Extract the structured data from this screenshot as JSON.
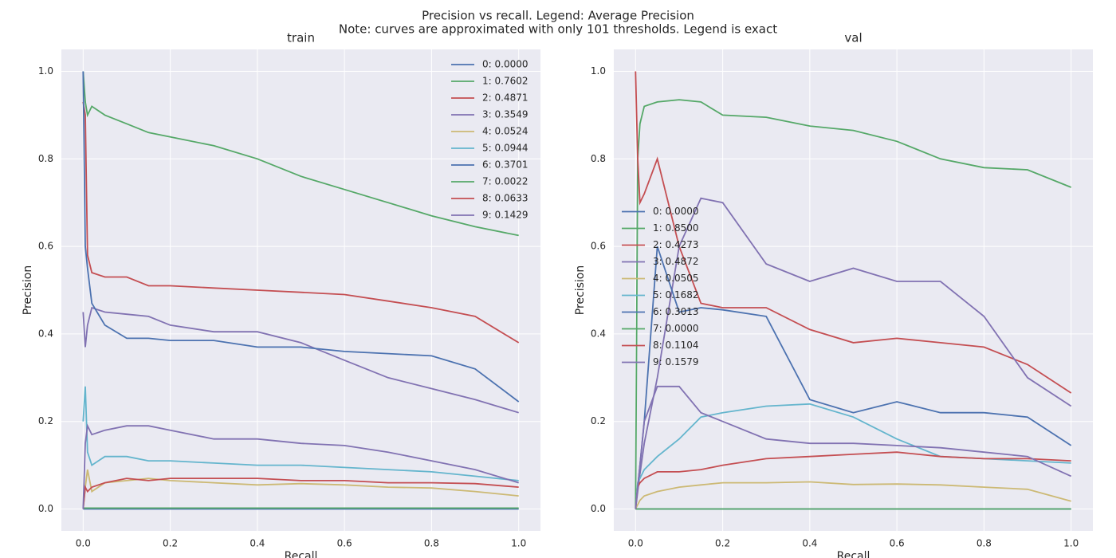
{
  "title": "Precision vs recall. Legend: Average Precision",
  "note": "Note: curves are approximated with only 101 thresholds. Legend is exact",
  "chart_data": [
    {
      "type": "line",
      "title": "train",
      "x_label": "Recall",
      "y_label": "Precision",
      "xlim": [
        -0.05,
        1.05
      ],
      "ylim": [
        -0.05,
        1.05
      ],
      "xticks": [
        {
          "value": 0,
          "label": "0.0"
        },
        0.2,
        0.4,
        0.6,
        0.8,
        {
          "value": 1,
          "label": "1.0"
        }
      ],
      "yticks": [
        {
          "value": 0,
          "label": "0.0"
        },
        0.2,
        0.4,
        0.6,
        0.8,
        {
          "value": 1,
          "label": "1.0"
        }
      ],
      "grid": true,
      "legend": "upper right",
      "x": [
        0,
        0.005,
        0.01,
        0.02,
        0.05,
        0.1,
        0.15,
        0.2,
        0.3,
        0.4,
        0.5,
        0.6,
        0.7,
        0.8,
        0.9,
        1.0
      ],
      "series": [
        {
          "name": "0: 0.0000",
          "color": "#4C72B0",
          "values": [
            0,
            0,
            0,
            0,
            0,
            0,
            0,
            0,
            0,
            0,
            0,
            0,
            0,
            0,
            0,
            0
          ]
        },
        {
          "name": "1: 0.7602",
          "color": "#55A868",
          "values": [
            1.0,
            0.93,
            0.9,
            0.92,
            0.9,
            0.88,
            0.86,
            0.85,
            0.83,
            0.8,
            0.76,
            0.73,
            0.7,
            0.67,
            0.645,
            0.625
          ]
        },
        {
          "name": "2: 0.4871",
          "color": "#C44E52",
          "values": [
            0.93,
            0.9,
            0.58,
            0.54,
            0.53,
            0.53,
            0.51,
            0.51,
            0.505,
            0.5,
            0.495,
            0.49,
            0.475,
            0.46,
            0.44,
            0.38
          ]
        },
        {
          "name": "3: 0.3549",
          "color": "#8172B2",
          "values": [
            0.45,
            0.37,
            0.42,
            0.46,
            0.45,
            0.445,
            0.44,
            0.42,
            0.405,
            0.405,
            0.38,
            0.34,
            0.3,
            0.275,
            0.25,
            0.22
          ]
        },
        {
          "name": "4: 0.0524",
          "color": "#CCB974",
          "values": [
            0,
            0.05,
            0.09,
            0.04,
            0.06,
            0.065,
            0.07,
            0.065,
            0.06,
            0.055,
            0.058,
            0.055,
            0.05,
            0.048,
            0.04,
            0.03
          ]
        },
        {
          "name": "5: 0.0944",
          "color": "#64B5CD",
          "values": [
            0.2,
            0.28,
            0.13,
            0.1,
            0.12,
            0.12,
            0.11,
            0.11,
            0.105,
            0.1,
            0.1,
            0.095,
            0.09,
            0.085,
            0.075,
            0.065
          ]
        },
        {
          "name": "6: 0.3701",
          "color": "#4C72B0",
          "values": [
            1.0,
            0.6,
            0.55,
            0.47,
            0.42,
            0.39,
            0.39,
            0.385,
            0.385,
            0.37,
            0.37,
            0.36,
            0.355,
            0.35,
            0.32,
            0.245
          ]
        },
        {
          "name": "7: 0.0022",
          "color": "#55A868",
          "values": [
            0.002,
            0.002,
            0.002,
            0.002,
            0.002,
            0.002,
            0.002,
            0.002,
            0.002,
            0.002,
            0.002,
            0.002,
            0.002,
            0.002,
            0.002,
            0.002
          ]
        },
        {
          "name": "8: 0.0633",
          "color": "#C44E52",
          "values": [
            0,
            0.05,
            0.04,
            0.05,
            0.06,
            0.07,
            0.065,
            0.07,
            0.07,
            0.07,
            0.065,
            0.065,
            0.06,
            0.06,
            0.058,
            0.05
          ]
        },
        {
          "name": "9: 0.1429",
          "color": "#8172B2",
          "values": [
            0,
            0.15,
            0.19,
            0.17,
            0.18,
            0.19,
            0.19,
            0.18,
            0.16,
            0.16,
            0.15,
            0.145,
            0.13,
            0.11,
            0.09,
            0.06
          ]
        }
      ]
    },
    {
      "type": "line",
      "title": "val",
      "x_label": "Recall",
      "y_label": "Precision",
      "xlim": [
        -0.05,
        1.05
      ],
      "ylim": [
        -0.05,
        1.05
      ],
      "xticks": [
        {
          "value": 0,
          "label": "0.0"
        },
        0.2,
        0.4,
        0.6,
        0.8,
        {
          "value": 1,
          "label": "1.0"
        }
      ],
      "yticks": [
        {
          "value": 0,
          "label": "0.0"
        },
        0.2,
        0.4,
        0.6,
        0.8,
        {
          "value": 1,
          "label": "1.0"
        }
      ],
      "grid": true,
      "legend": "center left",
      "x": [
        0,
        0.005,
        0.01,
        0.02,
        0.05,
        0.1,
        0.15,
        0.2,
        0.3,
        0.4,
        0.5,
        0.6,
        0.7,
        0.8,
        0.9,
        1.0
      ],
      "series": [
        {
          "name": "0: 0.0000",
          "color": "#4C72B0",
          "values": [
            0,
            0,
            0,
            0,
            0,
            0,
            0,
            0,
            0,
            0,
            0,
            0,
            0,
            0,
            0,
            0
          ]
        },
        {
          "name": "1: 0.8500",
          "color": "#55A868",
          "values": [
            0,
            0.8,
            0.88,
            0.92,
            0.93,
            0.935,
            0.93,
            0.9,
            0.895,
            0.875,
            0.865,
            0.84,
            0.8,
            0.78,
            0.775,
            0.735
          ]
        },
        {
          "name": "2: 0.4273",
          "color": "#C44E52",
          "values": [
            1.0,
            0.8,
            0.7,
            0.72,
            0.8,
            0.6,
            0.47,
            0.46,
            0.46,
            0.41,
            0.38,
            0.39,
            0.38,
            0.37,
            0.33,
            0.265
          ]
        },
        {
          "name": "3: 0.4872",
          "color": "#8172B2",
          "values": [
            0,
            0.04,
            0.08,
            0.15,
            0.3,
            0.6,
            0.71,
            0.7,
            0.56,
            0.52,
            0.55,
            0.52,
            0.52,
            0.44,
            0.3,
            0.235
          ]
        },
        {
          "name": "4: 0.0505",
          "color": "#CCB974",
          "values": [
            0,
            0.01,
            0.02,
            0.03,
            0.04,
            0.05,
            0.055,
            0.06,
            0.06,
            0.062,
            0.056,
            0.057,
            0.055,
            0.05,
            0.045,
            0.018
          ]
        },
        {
          "name": "5: 0.1682",
          "color": "#64B5CD",
          "values": [
            0,
            0.06,
            0.07,
            0.09,
            0.12,
            0.16,
            0.21,
            0.22,
            0.235,
            0.24,
            0.21,
            0.16,
            0.12,
            0.115,
            0.11,
            0.105
          ]
        },
        {
          "name": "6: 0.3013",
          "color": "#4C72B0",
          "values": [
            0,
            0.05,
            0.1,
            0.2,
            0.6,
            0.45,
            0.46,
            0.455,
            0.44,
            0.25,
            0.22,
            0.245,
            0.22,
            0.22,
            0.21,
            0.145
          ]
        },
        {
          "name": "7: 0.0000",
          "color": "#55A868",
          "values": [
            0,
            0,
            0,
            0,
            0,
            0,
            0,
            0,
            0,
            0,
            0,
            0,
            0,
            0,
            0,
            0
          ]
        },
        {
          "name": "8: 0.1104",
          "color": "#C44E52",
          "values": [
            0,
            0.05,
            0.06,
            0.07,
            0.085,
            0.085,
            0.09,
            0.1,
            0.115,
            0.12,
            0.125,
            0.13,
            0.12,
            0.115,
            0.115,
            0.11
          ]
        },
        {
          "name": "9: 0.1579",
          "color": "#8172B2",
          "values": [
            0,
            0.05,
            0.1,
            0.2,
            0.28,
            0.28,
            0.22,
            0.2,
            0.16,
            0.15,
            0.15,
            0.145,
            0.14,
            0.13,
            0.12,
            0.075
          ]
        }
      ]
    }
  ]
}
